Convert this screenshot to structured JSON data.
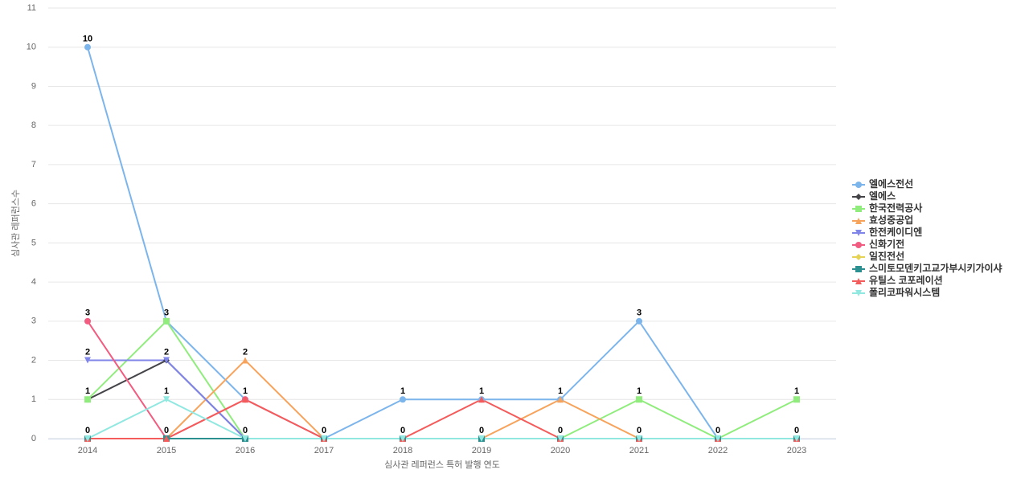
{
  "chart_data": {
    "type": "line",
    "x_label": "심사관 레퍼런스 특허 발행 연도",
    "y_label": "심사관 레퍼런스수",
    "categories": [
      "2014",
      "2015",
      "2016",
      "2017",
      "2018",
      "2019",
      "2020",
      "2021",
      "2022",
      "2023"
    ],
    "ylim": [
      0,
      11
    ],
    "yticks": [
      0,
      1,
      2,
      3,
      4,
      5,
      6,
      7,
      8,
      9,
      10,
      11
    ],
    "grid": true,
    "legend": "right",
    "series": [
      {
        "name": "엘에스전선",
        "color": "#7cb5ec",
        "marker": "circle",
        "values": [
          10,
          3,
          1,
          0,
          1,
          1,
          1,
          3,
          0,
          0
        ]
      },
      {
        "name": "엘에스",
        "color": "#434348",
        "marker": "diamond",
        "values": [
          1,
          2,
          0,
          0,
          0,
          0,
          0,
          0,
          0,
          0
        ]
      },
      {
        "name": "한국전력공사",
        "color": "#90ed7d",
        "marker": "square",
        "values": [
          1,
          3,
          0,
          0,
          0,
          0,
          0,
          1,
          0,
          1
        ]
      },
      {
        "name": "효성중공업",
        "color": "#f7a35c",
        "marker": "triangle",
        "values": [
          0,
          0,
          2,
          0,
          0,
          0,
          1,
          0,
          0,
          0
        ]
      },
      {
        "name": "한전케이디엔",
        "color": "#8085e9",
        "marker": "triangle-down",
        "values": [
          2,
          2,
          0,
          0,
          0,
          0,
          0,
          0,
          0,
          0
        ]
      },
      {
        "name": "신화기전",
        "color": "#f15c80",
        "marker": "circle",
        "values": [
          3,
          0,
          1,
          0,
          0,
          0,
          0,
          0,
          0,
          0
        ]
      },
      {
        "name": "일진전선",
        "color": "#e4d354",
        "marker": "diamond",
        "values": [
          0,
          0,
          0,
          0,
          0,
          0,
          0,
          0,
          0,
          0
        ]
      },
      {
        "name": "스미토모덴키고교가부시키가이샤",
        "color": "#2b908f",
        "marker": "square",
        "values": [
          0,
          0,
          0,
          0,
          0,
          0,
          0,
          0,
          0,
          0
        ]
      },
      {
        "name": "유틸스 코포레이션",
        "color": "#f45b5b",
        "marker": "triangle",
        "values": [
          0,
          0,
          1,
          0,
          0,
          1,
          0,
          0,
          0,
          0
        ]
      },
      {
        "name": "폴리코파워시스템",
        "color": "#91e8e1",
        "marker": "triangle-down",
        "values": [
          0,
          1,
          0,
          0,
          0,
          0,
          0,
          0,
          0,
          0
        ]
      }
    ]
  }
}
